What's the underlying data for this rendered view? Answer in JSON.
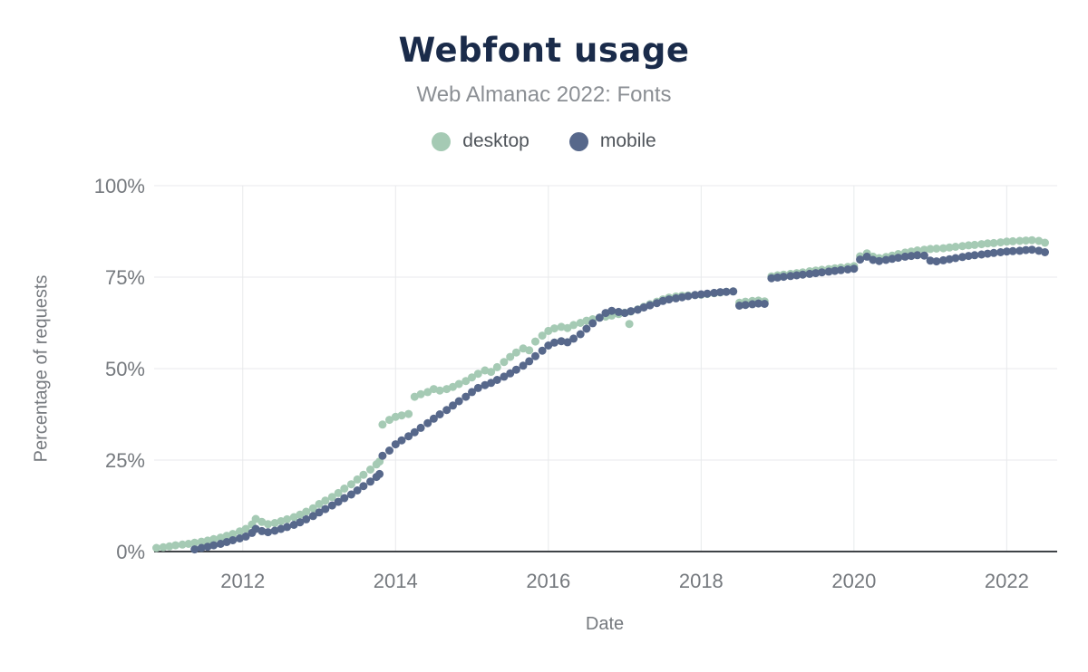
{
  "chart_data": {
    "type": "scatter",
    "title": "Webfont usage",
    "subtitle": "Web Almanac 2022: Fonts",
    "xlabel": "Date",
    "ylabel": "Percentage of requests",
    "xlim": [
      2010.84,
      2022.66
    ],
    "ylim": [
      0,
      100
    ],
    "grid": true,
    "legend_position": "top",
    "x_ticks": [
      [
        2012,
        "2012"
      ],
      [
        2014,
        "2014"
      ],
      [
        2016,
        "2016"
      ],
      [
        2018,
        "2018"
      ],
      [
        2020,
        "2020"
      ],
      [
        2022,
        "2022"
      ]
    ],
    "y_ticks": [
      [
        100,
        "100%"
      ],
      [
        75,
        "75%"
      ],
      [
        50,
        "50%"
      ],
      [
        25,
        "25%"
      ],
      [
        0,
        "0%"
      ]
    ],
    "colors": {
      "grid": "#e8eaec",
      "axis_line": "#3f4347",
      "tick_text": "#75797e",
      "title": "#1a2b4a",
      "subtitle": "#8b8f94"
    },
    "series": [
      {
        "name": "desktop",
        "color": "#a5cab4",
        "points": [
          [
            2010.87,
            1.0
          ],
          [
            2010.96,
            1.2
          ],
          [
            2011.04,
            1.4
          ],
          [
            2011.12,
            1.7
          ],
          [
            2011.21,
            1.9
          ],
          [
            2011.29,
            2.1
          ],
          [
            2011.37,
            2.4
          ],
          [
            2011.46,
            2.7
          ],
          [
            2011.54,
            3.0
          ],
          [
            2011.62,
            3.4
          ],
          [
            2011.71,
            3.8
          ],
          [
            2011.79,
            4.3
          ],
          [
            2011.87,
            4.8
          ],
          [
            2011.96,
            5.5
          ],
          [
            2012.04,
            6.2
          ],
          [
            2012.12,
            7.4
          ],
          [
            2012.17,
            8.9
          ],
          [
            2012.25,
            8.1
          ],
          [
            2012.33,
            7.5
          ],
          [
            2012.42,
            7.8
          ],
          [
            2012.5,
            8.3
          ],
          [
            2012.58,
            8.8
          ],
          [
            2012.67,
            9.4
          ],
          [
            2012.75,
            10.1
          ],
          [
            2012.83,
            10.9
          ],
          [
            2012.92,
            11.8
          ],
          [
            2013.0,
            13.0
          ],
          [
            2013.08,
            13.9
          ],
          [
            2013.17,
            14.9
          ],
          [
            2013.25,
            16.0
          ],
          [
            2013.33,
            17.2
          ],
          [
            2013.42,
            18.4
          ],
          [
            2013.5,
            19.7
          ],
          [
            2013.58,
            21.0
          ],
          [
            2013.67,
            22.4
          ],
          [
            2013.75,
            23.8
          ],
          [
            2013.79,
            24.6
          ],
          [
            2013.83,
            34.7
          ],
          [
            2013.92,
            36.0
          ],
          [
            2014.0,
            36.8
          ],
          [
            2014.08,
            37.2
          ],
          [
            2014.17,
            37.6
          ],
          [
            2014.25,
            42.3
          ],
          [
            2014.33,
            43.0
          ],
          [
            2014.42,
            43.6
          ],
          [
            2014.5,
            44.4
          ],
          [
            2014.58,
            44.0
          ],
          [
            2014.67,
            44.4
          ],
          [
            2014.75,
            45.0
          ],
          [
            2014.83,
            45.8
          ],
          [
            2014.92,
            46.6
          ],
          [
            2015.0,
            47.6
          ],
          [
            2015.08,
            48.6
          ],
          [
            2015.17,
            49.5
          ],
          [
            2015.25,
            49.1
          ],
          [
            2015.33,
            50.4
          ],
          [
            2015.42,
            51.8
          ],
          [
            2015.5,
            53.2
          ],
          [
            2015.58,
            54.4
          ],
          [
            2015.67,
            55.5
          ],
          [
            2015.75,
            55.0
          ],
          [
            2015.83,
            57.4
          ],
          [
            2015.92,
            59.0
          ],
          [
            2016.0,
            60.3
          ],
          [
            2016.08,
            61.0
          ],
          [
            2016.17,
            61.4
          ],
          [
            2016.25,
            61.1
          ],
          [
            2016.33,
            61.9
          ],
          [
            2016.42,
            62.5
          ],
          [
            2016.5,
            63.1
          ],
          [
            2016.58,
            63.5
          ],
          [
            2016.67,
            63.9
          ],
          [
            2016.75,
            64.2
          ],
          [
            2016.83,
            64.5
          ],
          [
            2016.92,
            64.9
          ],
          [
            2017.0,
            65.3
          ],
          [
            2017.06,
            62.2
          ],
          [
            2017.08,
            65.6
          ],
          [
            2017.17,
            66.2
          ],
          [
            2017.25,
            66.9
          ],
          [
            2017.33,
            67.6
          ],
          [
            2017.42,
            68.3
          ],
          [
            2017.5,
            68.9
          ],
          [
            2017.58,
            69.4
          ],
          [
            2017.67,
            69.7
          ],
          [
            2017.75,
            69.9
          ],
          [
            2017.83,
            70.0
          ],
          [
            2017.92,
            70.1
          ],
          [
            2018.0,
            70.2
          ],
          [
            2018.08,
            70.4
          ],
          [
            2018.17,
            70.6
          ],
          [
            2018.25,
            70.8
          ],
          [
            2018.33,
            71.0
          ],
          [
            2018.42,
            71.1
          ],
          [
            2018.5,
            68.0
          ],
          [
            2018.58,
            68.3
          ],
          [
            2018.67,
            68.5
          ],
          [
            2018.75,
            68.6
          ],
          [
            2018.83,
            68.4
          ],
          [
            2018.92,
            75.2
          ],
          [
            2019.0,
            75.5
          ],
          [
            2019.08,
            75.7
          ],
          [
            2019.17,
            75.9
          ],
          [
            2019.25,
            76.1
          ],
          [
            2019.33,
            76.3
          ],
          [
            2019.42,
            76.6
          ],
          [
            2019.5,
            76.8
          ],
          [
            2019.58,
            77.0
          ],
          [
            2019.67,
            77.2
          ],
          [
            2019.75,
            77.4
          ],
          [
            2019.83,
            77.6
          ],
          [
            2019.92,
            77.8
          ],
          [
            2020.0,
            78.0
          ],
          [
            2020.08,
            80.7
          ],
          [
            2020.17,
            81.5
          ],
          [
            2020.25,
            80.6
          ],
          [
            2020.33,
            80.2
          ],
          [
            2020.42,
            80.5
          ],
          [
            2020.5,
            80.9
          ],
          [
            2020.58,
            81.3
          ],
          [
            2020.67,
            81.7
          ],
          [
            2020.75,
            82.0
          ],
          [
            2020.83,
            82.3
          ],
          [
            2020.92,
            82.5
          ],
          [
            2021.0,
            82.7
          ],
          [
            2021.08,
            82.8
          ],
          [
            2021.17,
            82.9
          ],
          [
            2021.25,
            83.1
          ],
          [
            2021.33,
            83.3
          ],
          [
            2021.42,
            83.5
          ],
          [
            2021.5,
            83.7
          ],
          [
            2021.58,
            83.8
          ],
          [
            2021.67,
            84.0
          ],
          [
            2021.75,
            84.2
          ],
          [
            2021.83,
            84.3
          ],
          [
            2021.92,
            84.5
          ],
          [
            2022.0,
            84.7
          ],
          [
            2022.08,
            84.8
          ],
          [
            2022.17,
            84.9
          ],
          [
            2022.25,
            85.0
          ],
          [
            2022.33,
            85.1
          ],
          [
            2022.42,
            84.9
          ],
          [
            2022.5,
            84.4
          ]
        ]
      },
      {
        "name": "mobile",
        "color": "#57688b",
        "points": [
          [
            2011.37,
            0.6
          ],
          [
            2011.46,
            1.0
          ],
          [
            2011.54,
            1.3
          ],
          [
            2011.62,
            1.7
          ],
          [
            2011.71,
            2.1
          ],
          [
            2011.79,
            2.6
          ],
          [
            2011.87,
            3.1
          ],
          [
            2011.96,
            3.6
          ],
          [
            2012.04,
            4.1
          ],
          [
            2012.12,
            5.1
          ],
          [
            2012.17,
            6.2
          ],
          [
            2012.25,
            5.6
          ],
          [
            2012.33,
            5.3
          ],
          [
            2012.42,
            5.7
          ],
          [
            2012.5,
            6.2
          ],
          [
            2012.58,
            6.7
          ],
          [
            2012.67,
            7.3
          ],
          [
            2012.75,
            8.0
          ],
          [
            2012.83,
            8.8
          ],
          [
            2012.92,
            9.7
          ],
          [
            2013.0,
            10.7
          ],
          [
            2013.08,
            11.6
          ],
          [
            2013.17,
            12.6
          ],
          [
            2013.25,
            13.6
          ],
          [
            2013.33,
            14.6
          ],
          [
            2013.42,
            15.6
          ],
          [
            2013.5,
            16.7
          ],
          [
            2013.58,
            17.9
          ],
          [
            2013.67,
            19.1
          ],
          [
            2013.75,
            20.4
          ],
          [
            2013.79,
            21.2
          ],
          [
            2013.83,
            26.2
          ],
          [
            2013.92,
            27.6
          ],
          [
            2014.0,
            29.3
          ],
          [
            2014.08,
            30.4
          ],
          [
            2014.17,
            31.5
          ],
          [
            2014.25,
            32.6
          ],
          [
            2014.33,
            33.8
          ],
          [
            2014.42,
            35.1
          ],
          [
            2014.5,
            36.3
          ],
          [
            2014.58,
            37.5
          ],
          [
            2014.67,
            38.7
          ],
          [
            2014.75,
            39.9
          ],
          [
            2014.83,
            41.1
          ],
          [
            2014.92,
            42.3
          ],
          [
            2015.0,
            43.6
          ],
          [
            2015.08,
            44.7
          ],
          [
            2015.17,
            45.5
          ],
          [
            2015.25,
            46.1
          ],
          [
            2015.33,
            46.9
          ],
          [
            2015.42,
            47.8
          ],
          [
            2015.5,
            48.7
          ],
          [
            2015.58,
            49.7
          ],
          [
            2015.67,
            50.8
          ],
          [
            2015.75,
            52.0
          ],
          [
            2015.83,
            53.4
          ],
          [
            2015.92,
            54.9
          ],
          [
            2016.0,
            56.3
          ],
          [
            2016.08,
            57.1
          ],
          [
            2016.17,
            57.5
          ],
          [
            2016.25,
            57.2
          ],
          [
            2016.33,
            58.2
          ],
          [
            2016.42,
            59.4
          ],
          [
            2016.5,
            60.9
          ],
          [
            2016.58,
            62.4
          ],
          [
            2016.67,
            63.9
          ],
          [
            2016.75,
            65.2
          ],
          [
            2016.83,
            65.8
          ],
          [
            2016.92,
            65.5
          ],
          [
            2017.0,
            65.2
          ],
          [
            2017.08,
            65.7
          ],
          [
            2017.17,
            66.1
          ],
          [
            2017.25,
            66.7
          ],
          [
            2017.33,
            67.3
          ],
          [
            2017.42,
            67.9
          ],
          [
            2017.5,
            68.5
          ],
          [
            2017.58,
            68.9
          ],
          [
            2017.67,
            69.2
          ],
          [
            2017.75,
            69.5
          ],
          [
            2017.83,
            69.8
          ],
          [
            2017.92,
            70.1
          ],
          [
            2018.0,
            70.3
          ],
          [
            2018.08,
            70.5
          ],
          [
            2018.17,
            70.7
          ],
          [
            2018.25,
            70.9
          ],
          [
            2018.33,
            71.0
          ],
          [
            2018.42,
            71.1
          ],
          [
            2018.5,
            67.2
          ],
          [
            2018.58,
            67.4
          ],
          [
            2018.67,
            67.6
          ],
          [
            2018.75,
            67.8
          ],
          [
            2018.83,
            67.7
          ],
          [
            2018.92,
            74.7
          ],
          [
            2019.0,
            74.9
          ],
          [
            2019.08,
            75.1
          ],
          [
            2019.17,
            75.3
          ],
          [
            2019.25,
            75.5
          ],
          [
            2019.33,
            75.7
          ],
          [
            2019.42,
            75.9
          ],
          [
            2019.5,
            76.1
          ],
          [
            2019.58,
            76.3
          ],
          [
            2019.67,
            76.5
          ],
          [
            2019.75,
            76.7
          ],
          [
            2019.83,
            76.9
          ],
          [
            2019.92,
            77.1
          ],
          [
            2020.0,
            77.3
          ],
          [
            2020.08,
            79.8
          ],
          [
            2020.17,
            80.6
          ],
          [
            2020.25,
            79.7
          ],
          [
            2020.33,
            79.4
          ],
          [
            2020.42,
            79.7
          ],
          [
            2020.5,
            80.0
          ],
          [
            2020.58,
            80.3
          ],
          [
            2020.67,
            80.6
          ],
          [
            2020.75,
            80.8
          ],
          [
            2020.83,
            81.0
          ],
          [
            2020.92,
            80.9
          ],
          [
            2021.0,
            79.5
          ],
          [
            2021.08,
            79.3
          ],
          [
            2021.17,
            79.6
          ],
          [
            2021.25,
            79.9
          ],
          [
            2021.33,
            80.2
          ],
          [
            2021.42,
            80.5
          ],
          [
            2021.5,
            80.8
          ],
          [
            2021.58,
            81.0
          ],
          [
            2021.67,
            81.2
          ],
          [
            2021.75,
            81.4
          ],
          [
            2021.83,
            81.6
          ],
          [
            2021.92,
            81.8
          ],
          [
            2022.0,
            82.0
          ],
          [
            2022.08,
            82.1
          ],
          [
            2022.17,
            82.2
          ],
          [
            2022.25,
            82.4
          ],
          [
            2022.33,
            82.5
          ],
          [
            2022.42,
            82.2
          ],
          [
            2022.5,
            81.8
          ]
        ]
      }
    ]
  }
}
